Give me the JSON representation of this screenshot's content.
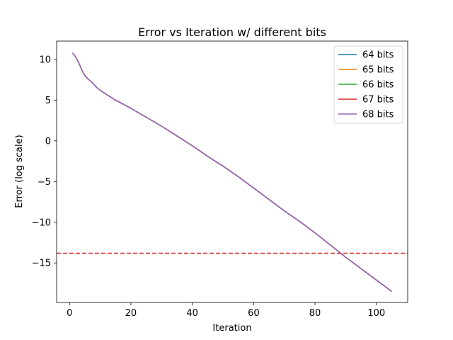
{
  "chart_data": {
    "type": "line",
    "title": "Error vs Iteration w/ different bits",
    "xlabel": "Iteration",
    "ylabel": "Error (log scale)",
    "xlim": [
      -4.2,
      110.2
    ],
    "ylim": [
      -19.85,
      12.25
    ],
    "xticks": [
      0,
      20,
      40,
      60,
      80,
      100
    ],
    "yticks": [
      10,
      5,
      0,
      -5,
      -10,
      -15
    ],
    "ytick_labels": [
      "10",
      "5",
      "0",
      "−5",
      "−10",
      "−15"
    ],
    "grid": false,
    "legend_position": "top-right",
    "x": [
      1,
      2,
      3,
      4,
      5,
      6,
      7,
      8,
      9,
      10,
      12,
      15,
      20,
      25,
      30,
      35,
      40,
      45,
      50,
      55,
      60,
      65,
      70,
      75,
      80,
      85,
      90,
      95,
      100,
      105
    ],
    "series": [
      {
        "name": "64 bits",
        "color": "#1f77b4",
        "values": [
          10.8,
          10.3,
          9.6,
          8.7,
          8.0,
          7.6,
          7.3,
          6.9,
          6.5,
          6.2,
          5.7,
          5.0,
          4.0,
          2.9,
          1.8,
          0.6,
          -0.6,
          -1.9,
          -3.1,
          -4.4,
          -5.8,
          -7.2,
          -8.6,
          -9.9,
          -11.3,
          -12.8,
          -14.3,
          -15.7,
          -17.1,
          -18.5
        ]
      },
      {
        "name": "65 bits",
        "color": "#ff7f0e",
        "values": [
          10.8,
          10.3,
          9.6,
          8.7,
          8.0,
          7.6,
          7.3,
          6.9,
          6.5,
          6.2,
          5.7,
          5.0,
          4.0,
          2.9,
          1.8,
          0.6,
          -0.6,
          -1.9,
          -3.1,
          -4.4,
          -5.8,
          -7.2,
          -8.6,
          -9.9,
          -11.3,
          -12.8,
          -14.3,
          -15.7,
          -17.1,
          -18.5
        ]
      },
      {
        "name": "66 bits",
        "color": "#2ca02c",
        "values": [
          10.8,
          10.3,
          9.6,
          8.7,
          8.0,
          7.6,
          7.3,
          6.9,
          6.5,
          6.2,
          5.7,
          5.0,
          4.0,
          2.9,
          1.8,
          0.6,
          -0.6,
          -1.9,
          -3.1,
          -4.4,
          -5.8,
          -7.2,
          -8.6,
          -9.9,
          -11.3,
          -12.8,
          -14.3,
          -15.7,
          -17.1,
          -18.5
        ]
      },
      {
        "name": "67 bits",
        "color": "#d62728",
        "values": [
          10.8,
          10.3,
          9.6,
          8.7,
          8.0,
          7.6,
          7.3,
          6.9,
          6.5,
          6.2,
          5.7,
          5.0,
          4.0,
          2.9,
          1.8,
          0.6,
          -0.6,
          -1.9,
          -3.1,
          -4.4,
          -5.8,
          -7.2,
          -8.6,
          -9.9,
          -11.3,
          -12.8,
          -14.3,
          -15.7,
          -17.1,
          -18.5
        ]
      },
      {
        "name": "68 bits",
        "color": "#9467bd",
        "values": [
          10.8,
          10.3,
          9.6,
          8.7,
          8.0,
          7.6,
          7.3,
          6.9,
          6.5,
          6.2,
          5.7,
          5.0,
          4.0,
          2.9,
          1.8,
          0.6,
          -0.6,
          -1.9,
          -3.1,
          -4.4,
          -5.8,
          -7.2,
          -8.6,
          -9.9,
          -11.3,
          -12.8,
          -14.3,
          -15.7,
          -17.1,
          -18.5
        ]
      }
    ],
    "reference_line": {
      "y": -13.8,
      "color": "#d62728",
      "style": "dashed"
    }
  }
}
